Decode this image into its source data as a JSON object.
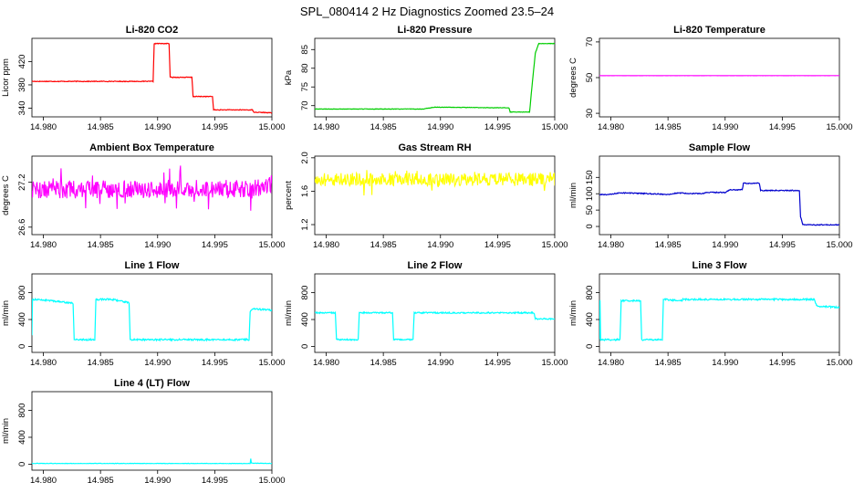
{
  "figure_title": "SPL_080414  2 Hz Diagnostics Zoomed 23.5–24",
  "colors": {
    "red": "#ff0000",
    "green": "#00cd00",
    "magenta": "#ff00ff",
    "yellow": "#ffff00",
    "blue": "#0000cd",
    "cyan": "#00ffff"
  },
  "chart_data": [
    {
      "type": "line",
      "title": "Li-820 CO2",
      "xlabel": "",
      "ylabel": "Licor ppm",
      "color": "red",
      "xlim": [
        14.979,
        15.0
      ],
      "ylim": [
        325,
        460
      ],
      "xticks": [
        "14.980",
        "14.985",
        "14.990",
        "14.995",
        "15.000"
      ],
      "yticks": [
        "340",
        "380",
        "420"
      ],
      "noise": 0.6,
      "series": [
        {
          "x": [
            14.979,
            14.9896,
            14.9897,
            14.991,
            14.9911,
            14.993,
            14.9931,
            14.9948,
            14.9949,
            14.997,
            14.9983,
            14.9984,
            15.0
          ],
          "y": [
            386,
            386,
            451,
            451,
            393,
            393,
            360,
            360,
            337,
            337,
            337,
            333,
            332
          ]
        }
      ]
    },
    {
      "type": "line",
      "title": "Li-820 Pressure",
      "xlabel": "",
      "ylabel": "kPa",
      "color": "green",
      "xlim": [
        14.979,
        15.0
      ],
      "ylim": [
        67,
        88
      ],
      "xticks": [
        "14.980",
        "14.985",
        "14.990",
        "14.995",
        "15.000"
      ],
      "yticks": [
        "70",
        "75",
        "80",
        "85"
      ],
      "noise": 0.06,
      "series": [
        {
          "x": [
            14.979,
            14.9885,
            14.9895,
            14.996,
            14.9961,
            14.9978,
            14.998,
            14.9983,
            14.9986,
            14.9987,
            15.0
          ],
          "y": [
            69.1,
            69.1,
            69.6,
            69.4,
            68.3,
            68.3,
            75,
            84,
            86.6,
            86.6,
            86.6
          ]
        }
      ]
    },
    {
      "type": "line",
      "title": "Li-820 Temperature",
      "xlabel": "",
      "ylabel": "degrees C",
      "color": "magenta",
      "xlim": [
        14.979,
        15.0
      ],
      "ylim": [
        28,
        72
      ],
      "xticks": [
        "14.980",
        "14.985",
        "14.990",
        "14.995",
        "15.000"
      ],
      "yticks": [
        "30",
        "50",
        "70"
      ],
      "noise": 0.02,
      "series": [
        {
          "x": [
            14.979,
            15.0
          ],
          "y": [
            51.1,
            51.1
          ]
        }
      ]
    },
    {
      "type": "line",
      "title": "Ambient Box Temperature",
      "xlabel": "",
      "ylabel": "degrees C",
      "color": "magenta",
      "xlim": [
        14.979,
        15.0
      ],
      "ylim": [
        26.5,
        27.55
      ],
      "xticks": [
        "14.980",
        "14.985",
        "14.990",
        "14.995",
        "15.000"
      ],
      "yticks": [
        "26.6",
        "27.2"
      ],
      "noise": 0.12,
      "series": [
        {
          "x": [
            14.979,
            14.9985,
            15.0
          ],
          "y": [
            27.1,
            27.12,
            27.18
          ]
        }
      ]
    },
    {
      "type": "line",
      "title": "Gas Stream RH",
      "xlabel": "",
      "ylabel": "percent",
      "color": "yellow",
      "xlim": [
        14.979,
        15.0
      ],
      "ylim": [
        1.08,
        2.02
      ],
      "xticks": [
        "14.980",
        "14.985",
        "14.990",
        "14.995",
        "15.000"
      ],
      "yticks": [
        "1.2",
        "1.6",
        "2.0"
      ],
      "noise": 0.08,
      "series": [
        {
          "x": [
            14.979,
            15.0
          ],
          "y": [
            1.74,
            1.74
          ]
        }
      ]
    },
    {
      "type": "line",
      "title": "Sample Flow",
      "xlabel": "",
      "ylabel": "ml/min",
      "color": "blue",
      "xlim": [
        14.979,
        15.0
      ],
      "ylim": [
        -25,
        215
      ],
      "xticks": [
        "14.980",
        "14.985",
        "14.990",
        "14.995",
        "15.000"
      ],
      "yticks": [
        "0",
        "50",
        "100",
        "150"
      ],
      "noise": 1.5,
      "series": [
        {
          "x": [
            14.979,
            14.98,
            14.9808,
            14.985,
            14.9858,
            14.988,
            14.9884,
            14.99,
            14.9904,
            14.9915,
            14.9916,
            14.993,
            14.9931,
            14.9965,
            14.9966,
            14.9968,
            15.0
          ],
          "y": [
            97,
            98,
            103,
            98,
            102,
            100,
            104,
            104,
            112,
            112,
            132,
            132,
            110,
            110,
            30,
            5,
            5
          ]
        }
      ]
    },
    {
      "type": "line",
      "title": "Line 1 Flow",
      "xlabel": "",
      "ylabel": "ml/min",
      "color": "cyan",
      "xlim": [
        14.979,
        15.0
      ],
      "ylim": [
        -90,
        1080
      ],
      "xticks": [
        "14.980",
        "14.985",
        "14.990",
        "14.995",
        "15.000"
      ],
      "yticks": [
        "0",
        "400",
        "800"
      ],
      "noise": 12,
      "series": [
        {
          "x": [
            14.979,
            14.97905,
            14.9792,
            14.9808,
            14.9826,
            14.9827,
            14.9845,
            14.9846,
            14.986,
            14.9875,
            14.9876,
            14.998,
            14.9981,
            14.9984,
            15.0
          ],
          "y": [
            160,
            700,
            700,
            680,
            640,
            100,
            100,
            700,
            700,
            650,
            100,
            100,
            520,
            560,
            540
          ]
        }
      ]
    },
    {
      "type": "line",
      "title": "Line 2 Flow",
      "xlabel": "",
      "ylabel": "ml/min",
      "color": "cyan",
      "xlim": [
        14.979,
        15.0
      ],
      "ylim": [
        -90,
        1080
      ],
      "xticks": [
        "14.980",
        "14.985",
        "14.990",
        "14.995",
        "15.000"
      ],
      "yticks": [
        "0",
        "400",
        "800"
      ],
      "noise": 10,
      "series": [
        {
          "x": [
            14.979,
            14.9808,
            14.9809,
            14.9828,
            14.9829,
            14.9858,
            14.9859,
            14.9876,
            14.9877,
            14.9982,
            14.9983,
            15.0
          ],
          "y": [
            500,
            500,
            100,
            100,
            500,
            500,
            100,
            100,
            500,
            500,
            410,
            410
          ]
        }
      ]
    },
    {
      "type": "line",
      "title": "Line 3 Flow",
      "xlabel": "",
      "ylabel": "ml/min",
      "color": "cyan",
      "xlim": [
        14.979,
        15.0
      ],
      "ylim": [
        -90,
        1080
      ],
      "xticks": [
        "14.980",
        "14.985",
        "14.990",
        "14.995",
        "15.000"
      ],
      "yticks": [
        "0",
        "400",
        "800"
      ],
      "noise": 12,
      "series": [
        {
          "x": [
            14.979,
            14.97905,
            14.9791,
            14.9808,
            14.9809,
            14.9826,
            14.9827,
            14.9845,
            14.9846,
            14.9862,
            14.9863,
            14.9978,
            14.998,
            15.0
          ],
          "y": [
            100,
            700,
            100,
            100,
            680,
            680,
            100,
            100,
            700,
            680,
            700,
            700,
            600,
            580
          ]
        }
      ]
    },
    {
      "type": "line",
      "title": "Line 4 (LT) Flow",
      "xlabel": "",
      "ylabel": "ml/min",
      "color": "cyan",
      "xlim": [
        14.979,
        15.0
      ],
      "ylim": [
        -90,
        1080
      ],
      "xticks": [
        "14.980",
        "14.985",
        "14.990",
        "14.995",
        "15.000"
      ],
      "yticks": [
        "0",
        "400",
        "800"
      ],
      "noise": 3,
      "series": [
        {
          "x": [
            14.979,
            14.9981,
            14.99815,
            14.9982,
            15.0
          ],
          "y": [
            10,
            10,
            80,
            15,
            10
          ]
        }
      ]
    }
  ]
}
